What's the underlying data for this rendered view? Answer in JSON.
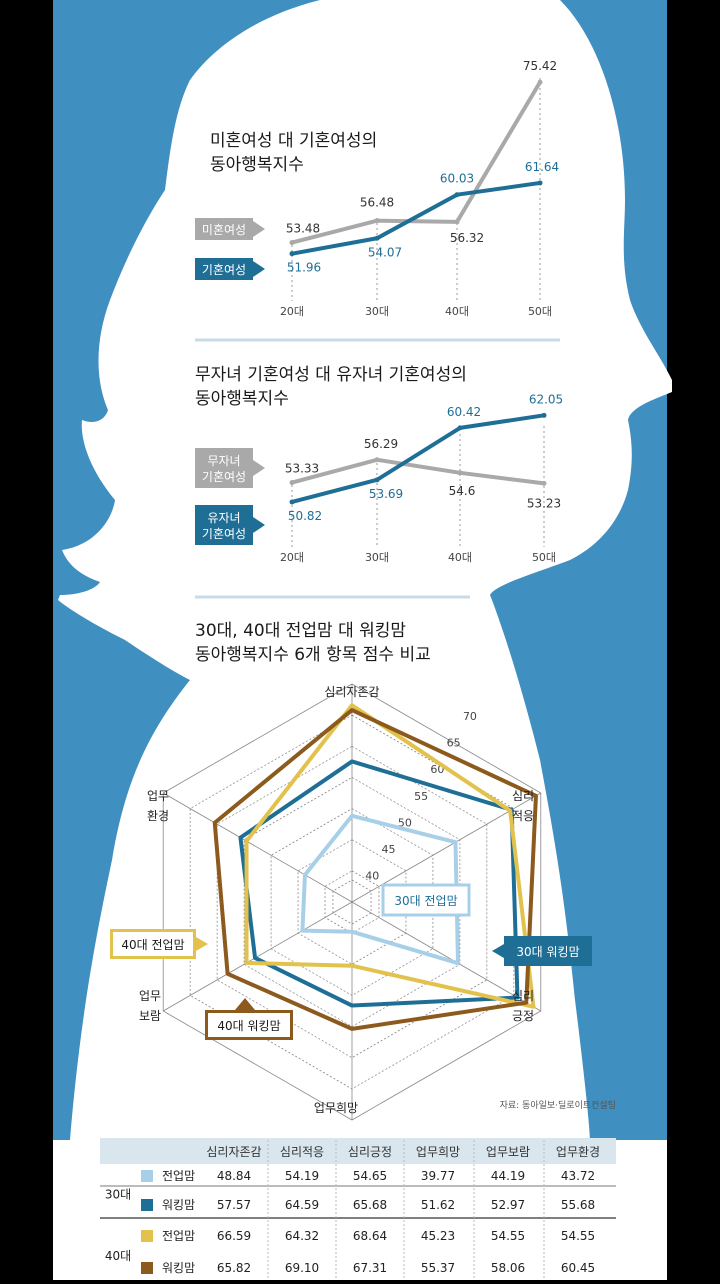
{
  "colors": {
    "bg_blue": "#3f8fc1",
    "silhouette": "#ffffff",
    "gray": "#a9a9a9",
    "navy": "#1f6e96",
    "light_blue": "#a7d0e8",
    "gold": "#e2c24d",
    "brown": "#8c5a1c"
  },
  "chart_data": [
    {
      "type": "line",
      "title_lines": [
        "미혼여성 대 기혼여성의",
        "동아행복지수"
      ],
      "categories": [
        "20대",
        "30대",
        "40대",
        "50대"
      ],
      "series": [
        {
          "name": "미혼여성",
          "values": [
            53.48,
            56.48,
            56.32,
            75.42
          ],
          "labels": [
            "53.48",
            "56.48",
            "56.32",
            "75.42"
          ],
          "color": "#a9a9a9"
        },
        {
          "name": "기혼여성",
          "values": [
            51.96,
            54.07,
            60.03,
            61.64
          ],
          "labels": [
            "51.96",
            "54.07",
            "60.03",
            "61.64"
          ],
          "color": "#1f6e96"
        }
      ]
    },
    {
      "type": "line",
      "title_lines": [
        "무자녀 기혼여성 대 유자녀 기혼여성의",
        "동아행복지수"
      ],
      "categories": [
        "20대",
        "30대",
        "40대",
        "50대"
      ],
      "series": [
        {
          "name_lines": [
            "무자녀",
            "기혼여성"
          ],
          "values": [
            53.33,
            56.29,
            54.6,
            53.23
          ],
          "labels": [
            "53.33",
            "56.29",
            "54.6",
            "53.23"
          ],
          "color": "#a9a9a9"
        },
        {
          "name_lines": [
            "유자녀",
            "기혼여성"
          ],
          "values": [
            50.82,
            53.69,
            60.42,
            62.05
          ],
          "labels": [
            "50.82",
            "53.69",
            "60.42",
            "62.05"
          ],
          "color": "#1f6e96"
        }
      ]
    },
    {
      "type": "radar",
      "title_lines": [
        "30대, 40대 전업맘 대 워킹맘",
        "동아행복지수 6개 항목 점수 비교"
      ],
      "axes": [
        "심리자존감",
        "심리적응",
        "심리긍정",
        "업무희망",
        "업무보람",
        "업무환경"
      ],
      "axis_label_lines": [
        [
          "심리자존감"
        ],
        [
          "심리",
          "적응"
        ],
        [
          "심리",
          "긍정"
        ],
        [
          "업무희망"
        ],
        [
          "업무",
          "보람"
        ],
        [
          "업무",
          "환경"
        ]
      ],
      "scale": {
        "min": 35,
        "max": 70,
        "ticks": [
          40,
          45,
          50,
          55,
          60,
          65,
          70
        ],
        "tick_labels": [
          "40",
          "45",
          "50",
          "55",
          "60",
          "65",
          "70"
        ]
      },
      "series": [
        {
          "name": "30대 전업맘",
          "values": [
            48.84,
            54.19,
            54.65,
            39.77,
            44.19,
            43.72
          ],
          "color": "#a7d0e8"
        },
        {
          "name": "30대 워킹맘",
          "values": [
            57.57,
            64.59,
            65.68,
            51.62,
            52.97,
            55.68
          ],
          "color": "#1f6e96"
        },
        {
          "name": "40대 전업맘",
          "values": [
            66.59,
            64.32,
            68.64,
            45.23,
            54.55,
            54.55
          ],
          "color": "#e2c24d"
        },
        {
          "name": "40대 워킹맘",
          "values": [
            65.82,
            69.1,
            67.31,
            55.37,
            58.06,
            60.45
          ],
          "color": "#8c5a1c"
        }
      ],
      "source": "자료: 동아일보·딜로이트컨설팅"
    },
    {
      "type": "table",
      "columns": [
        "심리자존감",
        "심리적응",
        "심리긍정",
        "업무희망",
        "업무보람",
        "업무환경"
      ],
      "groups": [
        {
          "label": "30대",
          "rows": [
            {
              "name": "전업맘",
              "color": "#a7d0e8",
              "cells": [
                "48.84",
                "54.19",
                "54.65",
                "39.77",
                "44.19",
                "43.72"
              ]
            },
            {
              "name": "워킹맘",
              "color": "#1f6e96",
              "cells": [
                "57.57",
                "64.59",
                "65.68",
                "51.62",
                "52.97",
                "55.68"
              ]
            }
          ]
        },
        {
          "label": "40대",
          "rows": [
            {
              "name": "전업맘",
              "color": "#e2c24d",
              "cells": [
                "66.59",
                "64.32",
                "68.64",
                "45.23",
                "54.55",
                "54.55"
              ]
            },
            {
              "name": "워킹맘",
              "color": "#8c5a1c",
              "cells": [
                "65.82",
                "69.10",
                "67.31",
                "55.37",
                "58.06",
                "60.45"
              ]
            }
          ]
        }
      ]
    }
  ]
}
